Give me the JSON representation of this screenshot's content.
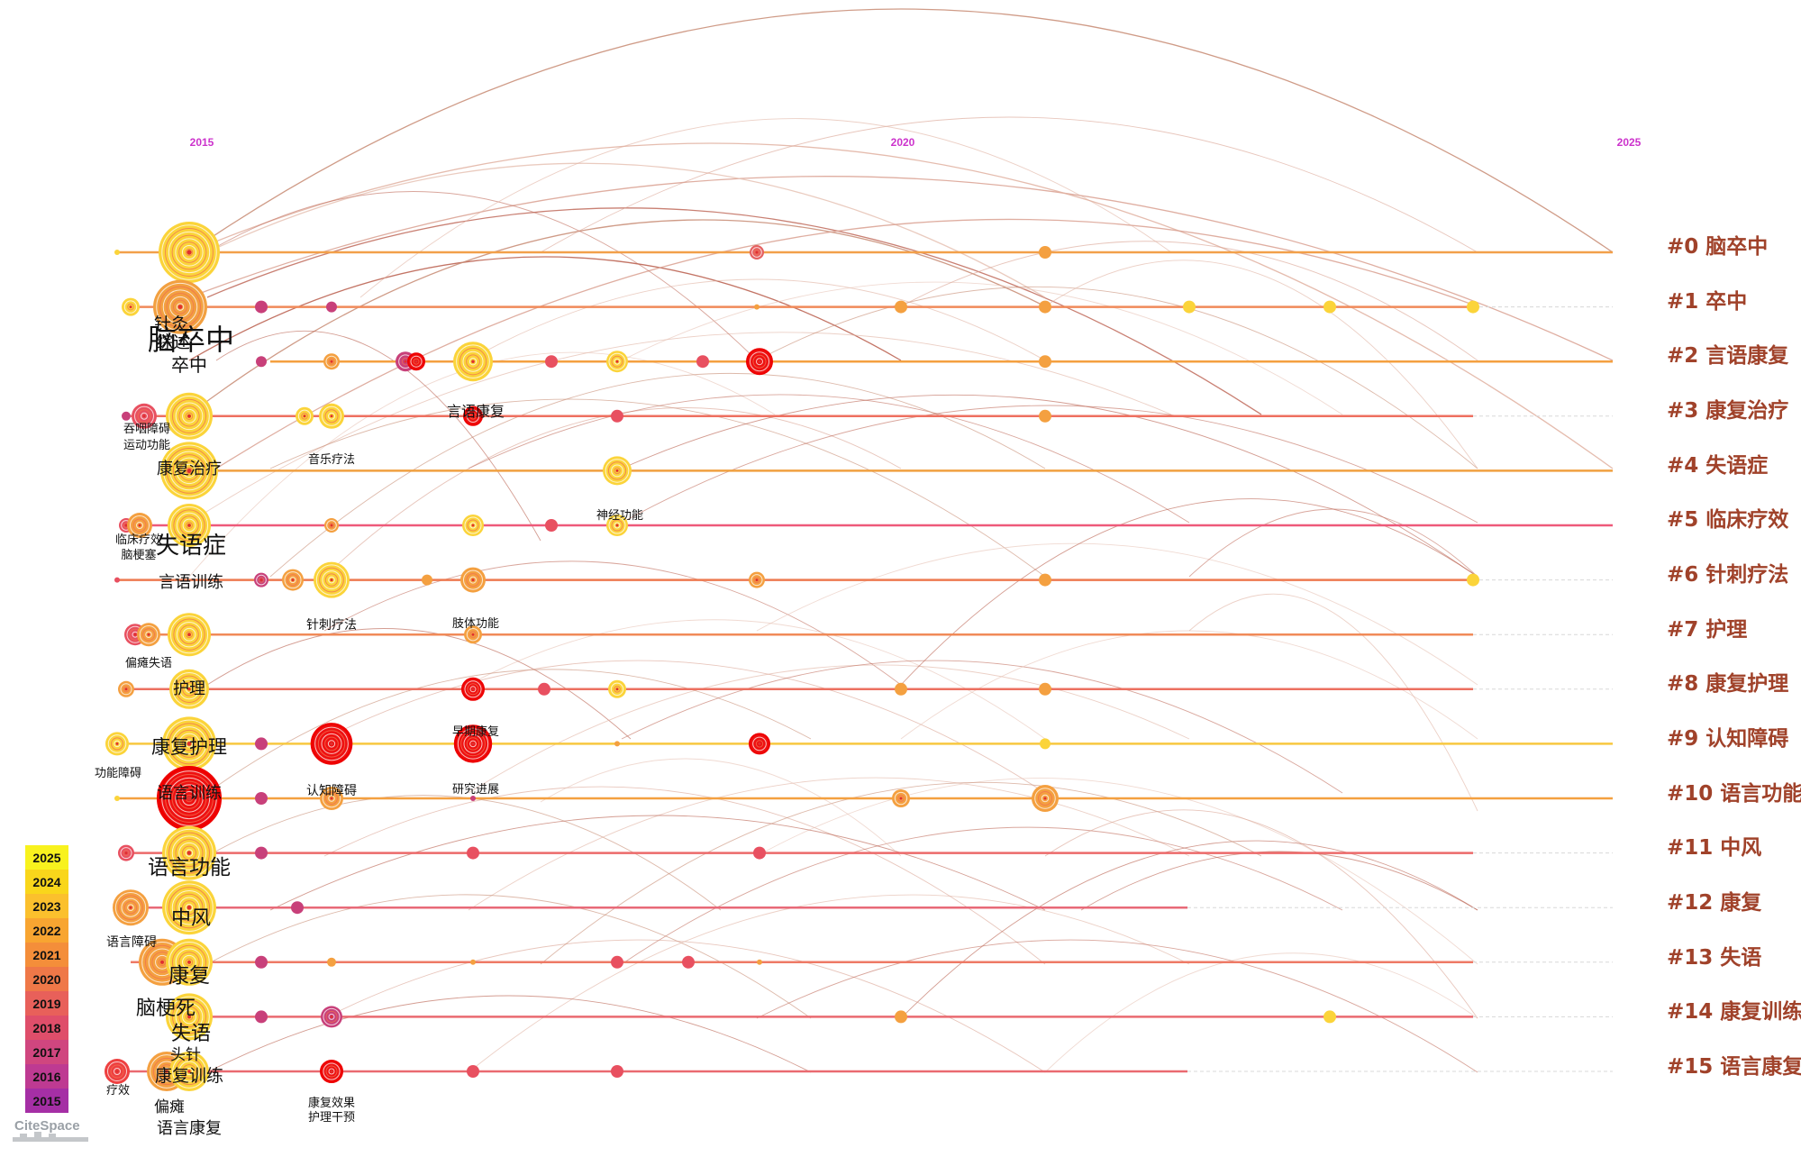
{
  "timeline": {
    "years": [
      "2015",
      "2020",
      "2025"
    ]
  },
  "clusters": [
    "#0 脑卒中",
    "#1 卒中",
    "#2 言语康复",
    "#3 康复治疗",
    "#4 失语症",
    "#5 临床疗效",
    "#6 针刺疗法",
    "#7 护理",
    "#8 康复护理",
    "#9 认知障碍",
    "#10 语言功能",
    "#11 中风",
    "#12 康复",
    "#13 失语",
    "#14 康复训练",
    "#15 语言康复"
  ],
  "keywords": {
    "zhenjiu": "针灸",
    "naocuzhong": "脑卒中",
    "zongshu": "综述",
    "cuzhong": "卒中",
    "tunyan": "吞咽障碍",
    "yundong": "运动功能",
    "yanyu_kangfu": "言语康复",
    "yinyue": "音乐疗法",
    "kangfu_zhiliao": "康复治疗",
    "shenjing": "神经功能",
    "linchuang": "临床疗效",
    "naogengse": "脑梗塞",
    "shiyuzheng": "失语症",
    "yanyu_xunlian": "言语训练",
    "zhenci": "针刺疗法",
    "zhiti": "肢体功能",
    "piantan_shiyu": "偏瘫失语",
    "huli": "护理",
    "kangfu_huli": "康复护理",
    "zaoqi": "早期康复",
    "gongneng_zhangai": "功能障碍",
    "yuyan_xunlian": "语言训练",
    "renzhi": "认知障碍",
    "yanjiu": "研究进展",
    "yuyan_gongneng": "语言功能",
    "zhongfeng": "中风",
    "yuyan_zhangai": "语言障碍",
    "kangfu": "康复",
    "naogengsi": "脑梗死",
    "shiyu": "失语",
    "touzhen": "头针",
    "kangfu_xunlian": "康复训练",
    "liaoxiao": "疗效",
    "kangfu_xiaoguo": "康复效果",
    "huli_ganyu": "护理干预",
    "piantan": "偏瘫",
    "yuyan_kangfu": "语言康复"
  },
  "legend": {
    "years": [
      "2025",
      "2024",
      "2023",
      "2022",
      "2021",
      "2020",
      "2019",
      "2018",
      "2017",
      "2016",
      "2015"
    ],
    "colors": [
      "#f8f21e",
      "#f9d61b",
      "#fbc02d",
      "#f8a531",
      "#f48e3a",
      "#ef7848",
      "#e8605a",
      "#df4e6a",
      "#d0467f",
      "#be3a92",
      "#a52fa5"
    ]
  },
  "logo": "CiteSpace",
  "colors": {
    "cluster_label": "#a0422a",
    "year_label": "#cc33cc",
    "hot": "#ff0000"
  }
}
